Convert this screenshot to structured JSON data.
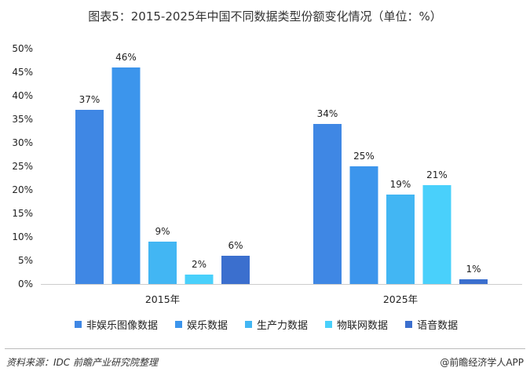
{
  "title": "图表5：2015-2025年中国不同数据类型份额变化情况（单位：%）",
  "chart_data": {
    "type": "bar",
    "categories": [
      "2015年",
      "2025年"
    ],
    "series": [
      {
        "name": "非娱乐图像数据",
        "color": "#3f87e4",
        "values": [
          37,
          34
        ],
        "labels": [
          "37%",
          "34%"
        ]
      },
      {
        "name": "娱乐数据",
        "color": "#3c95ec",
        "values": [
          46,
          25
        ],
        "labels": [
          "46%",
          "25%"
        ]
      },
      {
        "name": "生产力数据",
        "color": "#42b6f3",
        "values": [
          9,
          19
        ],
        "labels": [
          "9%",
          "19%"
        ]
      },
      {
        "name": "物联网数据",
        "color": "#49d0fb",
        "values": [
          2,
          21
        ],
        "labels": [
          "2%",
          "21%"
        ]
      },
      {
        "name": "语音数据",
        "color": "#3b6fce",
        "values": [
          6,
          1
        ],
        "labels": [
          "6%",
          "1%"
        ]
      }
    ],
    "y_ticks": [
      "0%",
      "5%",
      "10%",
      "15%",
      "20%",
      "25%",
      "30%",
      "35%",
      "40%",
      "45%",
      "50%"
    ],
    "ylim": [
      0,
      50
    ],
    "legend_position": "bottom",
    "grid": false
  },
  "footer": {
    "source": "资料来源：IDC 前瞻产业研究院整理",
    "brand": "@前瞻经济学人APP"
  }
}
